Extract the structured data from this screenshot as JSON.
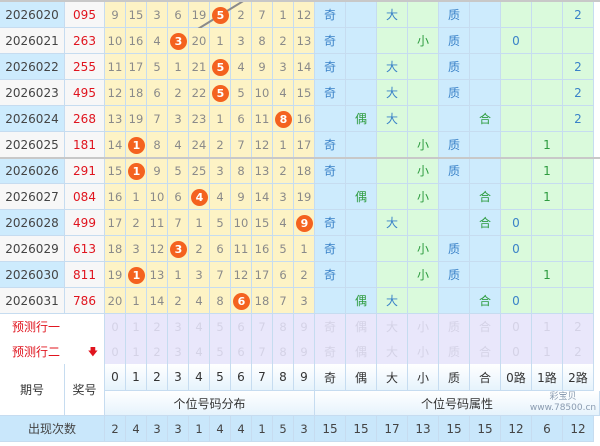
{
  "colors": {
    "ball": "#f4621f",
    "award": "#e0141e",
    "blue_text": "#3a82c8",
    "green_text": "#2e9c40"
  },
  "rows": [
    {
      "period": "2026020",
      "award": "095",
      "miss": [
        "9",
        "15",
        "3",
        "6",
        "19",
        "5",
        "2",
        "7",
        "1",
        "12"
      ],
      "hit": 5,
      "attrs": [
        "奇",
        "",
        "大",
        "",
        "质",
        "",
        "",
        "",
        "2"
      ]
    },
    {
      "period": "2026021",
      "award": "263",
      "miss": [
        "10",
        "16",
        "4",
        "3",
        "20",
        "1",
        "3",
        "8",
        "2",
        "13"
      ],
      "hit": 3,
      "attrs": [
        "奇",
        "",
        "",
        "小",
        "质",
        "",
        "0",
        "",
        ""
      ]
    },
    {
      "period": "2026022",
      "award": "255",
      "miss": [
        "11",
        "17",
        "5",
        "1",
        "21",
        "5",
        "4",
        "9",
        "3",
        "14"
      ],
      "hit": 5,
      "attrs": [
        "奇",
        "",
        "大",
        "",
        "质",
        "",
        "",
        "",
        "2"
      ]
    },
    {
      "period": "2026023",
      "award": "495",
      "miss": [
        "12",
        "18",
        "6",
        "2",
        "22",
        "5",
        "5",
        "10",
        "4",
        "15"
      ],
      "hit": 5,
      "attrs": [
        "奇",
        "",
        "大",
        "",
        "质",
        "",
        "",
        "",
        "2"
      ]
    },
    {
      "period": "2026024",
      "award": "268",
      "miss": [
        "13",
        "19",
        "7",
        "3",
        "23",
        "1",
        "6",
        "11",
        "8",
        "16"
      ],
      "hit": 8,
      "attrs": [
        "",
        "偶",
        "大",
        "",
        "",
        "合",
        "",
        "",
        "2"
      ]
    },
    {
      "period": "2026025",
      "award": "181",
      "miss": [
        "14",
        "1",
        "8",
        "4",
        "24",
        "2",
        "7",
        "12",
        "1",
        "17"
      ],
      "hit": 1,
      "attrs": [
        "奇",
        "",
        "",
        "小",
        "质",
        "",
        "",
        "1",
        ""
      ]
    },
    {
      "period": "2026026",
      "award": "291",
      "miss": [
        "15",
        "1",
        "9",
        "5",
        "25",
        "3",
        "8",
        "13",
        "2",
        "18"
      ],
      "hit": 1,
      "attrs": [
        "奇",
        "",
        "",
        "小",
        "质",
        "",
        "",
        "1",
        ""
      ]
    },
    {
      "period": "2026027",
      "award": "084",
      "miss": [
        "16",
        "1",
        "10",
        "6",
        "4",
        "4",
        "9",
        "14",
        "3",
        "19"
      ],
      "hit": 4,
      "attrs": [
        "",
        "偶",
        "",
        "小",
        "",
        "合",
        "",
        "1",
        ""
      ]
    },
    {
      "period": "2026028",
      "award": "499",
      "miss": [
        "17",
        "2",
        "11",
        "7",
        "1",
        "5",
        "10",
        "15",
        "4",
        "9"
      ],
      "hit": 9,
      "attrs": [
        "奇",
        "",
        "大",
        "",
        "",
        "合",
        "0",
        "",
        ""
      ]
    },
    {
      "period": "2026029",
      "award": "613",
      "miss": [
        "18",
        "3",
        "12",
        "3",
        "2",
        "6",
        "11",
        "16",
        "5",
        "1"
      ],
      "hit": 3,
      "attrs": [
        "奇",
        "",
        "",
        "小",
        "质",
        "",
        "0",
        "",
        ""
      ]
    },
    {
      "period": "2026030",
      "award": "811",
      "miss": [
        "19",
        "1",
        "13",
        "1",
        "3",
        "7",
        "12",
        "17",
        "6",
        "2"
      ],
      "hit": 1,
      "attrs": [
        "奇",
        "",
        "",
        "小",
        "质",
        "",
        "",
        "1",
        ""
      ]
    },
    {
      "period": "2026031",
      "award": "786",
      "miss": [
        "20",
        "1",
        "14",
        "2",
        "4",
        "8",
        "6",
        "18",
        "7",
        "3"
      ],
      "hit": 6,
      "attrs": [
        "",
        "偶",
        "大",
        "",
        "",
        "合",
        "0",
        "",
        ""
      ]
    }
  ],
  "prediction": {
    "labels": [
      "预测行一",
      "预测行二"
    ],
    "cells": [
      "0",
      "1",
      "2",
      "3",
      "4",
      "5",
      "6",
      "7",
      "8",
      "9",
      "奇",
      "偶",
      "大",
      "小",
      "质",
      "合",
      "0",
      "1",
      "2"
    ]
  },
  "header": {
    "period": "期号",
    "award": "奖号",
    "digits": [
      "0",
      "1",
      "2",
      "3",
      "4",
      "5",
      "6",
      "7",
      "8",
      "9"
    ],
    "attrs": [
      "奇",
      "偶",
      "大",
      "小",
      "质",
      "合",
      "0路",
      "1路",
      "2路"
    ],
    "group_digits": "个位号码分布",
    "group_attrs": "个位号码属性"
  },
  "counts": {
    "label": "出现次数",
    "values": [
      "2",
      "4",
      "3",
      "3",
      "1",
      "4",
      "4",
      "1",
      "5",
      "3",
      "15",
      "15",
      "17",
      "13",
      "15",
      "15",
      "12",
      "6",
      "12"
    ]
  },
  "watermark": "彩宝贝 www.78500.cn"
}
